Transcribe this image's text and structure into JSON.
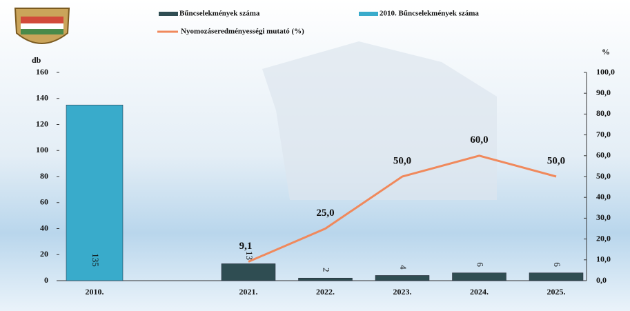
{
  "chart_data": {
    "type": "bar-line",
    "y_label": "db",
    "y2_label": "%",
    "categories": [
      "2010.",
      null,
      "2021.",
      "2022.",
      "2023.",
      "2024.",
      "2025."
    ],
    "series": [
      {
        "name": "Bűncselekmények száma",
        "type": "bar",
        "color": "#2f4d52",
        "values": [
          null,
          null,
          13,
          2,
          4,
          6,
          6
        ]
      },
      {
        "name": "2010. Bűncselekmények száma",
        "type": "bar",
        "color": "#39abcb",
        "values": [
          135,
          null,
          null,
          null,
          null,
          null,
          null
        ]
      },
      {
        "name": "Nyomozáseredményességi mutató (%)",
        "type": "line",
        "axis": "y2",
        "color": "#f0895c",
        "values": [
          null,
          null,
          9.1,
          25.0,
          50.0,
          60.0,
          50.0
        ],
        "value_labels": [
          null,
          null,
          "9,1",
          "25,0",
          "50,0",
          "60,0",
          "50,0"
        ]
      }
    ],
    "ylim": [
      0,
      160
    ],
    "yticks": [
      0,
      20,
      40,
      60,
      80,
      100,
      120,
      140,
      160
    ],
    "y2lim": [
      0,
      100
    ],
    "y2ticks": [
      {
        "value": 0,
        "label": "0,0"
      },
      {
        "value": 10,
        "label": "10,0"
      },
      {
        "value": 20,
        "label": "20,0"
      },
      {
        "value": 30,
        "label": "30,0"
      },
      {
        "value": 40,
        "label": "40,0"
      },
      {
        "value": 50,
        "label": "50,0"
      },
      {
        "value": 60,
        "label": "60,0"
      },
      {
        "value": 70,
        "label": "70,0"
      },
      {
        "value": 80,
        "label": "80,0"
      },
      {
        "value": 90,
        "label": "90,0"
      },
      {
        "value": 100,
        "label": "100,0"
      }
    ]
  }
}
